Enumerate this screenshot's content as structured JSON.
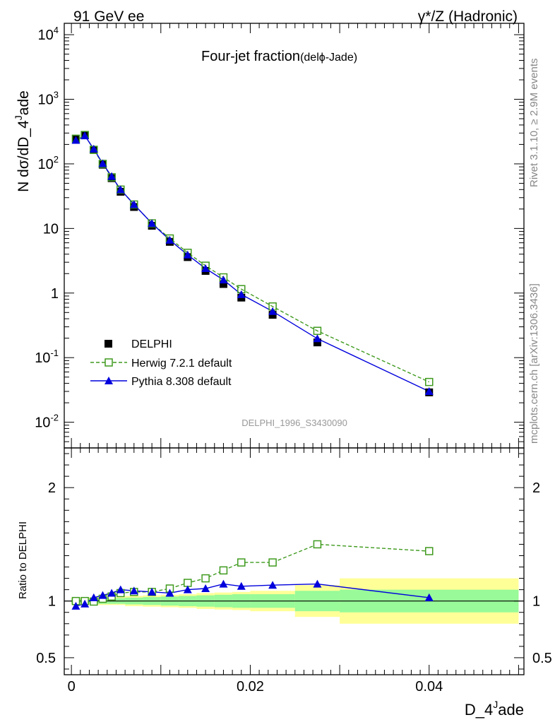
{
  "header": {
    "left_label": "91 GeV ee",
    "right_label": "γ*/Z (Hadronic)"
  },
  "side_text": {
    "rivet": "Rivet 3.1.10, ≥ 2.9M events",
    "mcplots": "mcplots.cern.ch [arXiv:1306.3436]"
  },
  "analysis_id": "DELPHI_1996_S3430090",
  "chart_data": {
    "type": "line",
    "title": "Four-jet fraction",
    "title_suffix": "(delϕ-Jade)",
    "xlabel": "D_4^Jade",
    "ylabel": "N dσ/dD_4^Jade",
    "ratio_ylabel": "Ratio to DELPHI",
    "xlim": [
      -0.0008,
      0.0506
    ],
    "xticks": [
      0,
      0.02,
      0.04
    ],
    "xtick_labels": [
      "0",
      "0.02",
      "0.04"
    ],
    "ylim": [
      0.004,
      15000
    ],
    "yscale": "log",
    "ytick_labels": [
      "10^-2",
      "10^-1",
      "1",
      "10",
      "10^2",
      "10^3",
      "10^4"
    ],
    "ratio_ylim": [
      0.35,
      2.35
    ],
    "ratio_yticks": [
      0.5,
      1,
      2
    ],
    "ratio_ytick_labels": [
      "0.5",
      "1",
      "2"
    ],
    "legend_position": "lower-left",
    "x": [
      0.0005,
      0.0015,
      0.0025,
      0.0035,
      0.0045,
      0.0055,
      0.007,
      0.009,
      0.011,
      0.013,
      0.015,
      0.017,
      0.019,
      0.0225,
      0.0275,
      0.04
    ],
    "bin_edges": [
      0,
      0.001,
      0.002,
      0.003,
      0.004,
      0.005,
      0.006,
      0.008,
      0.01,
      0.012,
      0.014,
      0.016,
      0.018,
      0.02,
      0.025,
      0.03,
      0.05
    ],
    "series": [
      {
        "name": "DELPHI",
        "color": "#000000",
        "marker": "filled-square",
        "values": [
          245,
          280,
          165,
          97,
          60,
          37,
          21.5,
          11,
          6.2,
          3.6,
          2.2,
          1.38,
          0.85,
          0.46,
          0.172,
          0.029
        ]
      },
      {
        "name": "Herwig 7.2.1 default",
        "color": "#3f9a1e",
        "marker": "open-square",
        "line": "dashed",
        "values": [
          245,
          280,
          165,
          100,
          62,
          40,
          23.5,
          12,
          7.0,
          4.2,
          2.65,
          1.75,
          1.15,
          0.62,
          0.26,
          0.042
        ],
        "ratio": [
          1.0,
          1.0,
          0.995,
          1.02,
          1.04,
          1.07,
          1.08,
          1.08,
          1.11,
          1.16,
          1.2,
          1.27,
          1.34,
          1.34,
          1.5,
          1.44
        ]
      },
      {
        "name": "Pythia 8.308 default",
        "color": "#0000dd",
        "marker": "filled-triangle",
        "line": "solid",
        "values": [
          232,
          273,
          170,
          101,
          64,
          40,
          23.5,
          12,
          6.6,
          3.9,
          2.4,
          1.6,
          0.95,
          0.52,
          0.197,
          0.03
        ],
        "ratio": [
          0.955,
          0.975,
          1.03,
          1.05,
          1.07,
          1.1,
          1.09,
          1.08,
          1.07,
          1.1,
          1.11,
          1.15,
          1.13,
          1.14,
          1.15,
          1.03
        ]
      }
    ],
    "uncertainty_bands": {
      "inner_color": "#98fa98",
      "outer_color": "#ffff98",
      "inner_halfwidth": [
        0.02,
        0.02,
        0.02,
        0.025,
        0.025,
        0.025,
        0.03,
        0.035,
        0.04,
        0.045,
        0.05,
        0.055,
        0.06,
        0.06,
        0.09,
        0.1
      ],
      "outer_halfwidth": [
        0.03,
        0.03,
        0.03,
        0.035,
        0.035,
        0.035,
        0.045,
        0.05,
        0.055,
        0.06,
        0.07,
        0.075,
        0.08,
        0.09,
        0.14,
        0.2
      ]
    }
  }
}
